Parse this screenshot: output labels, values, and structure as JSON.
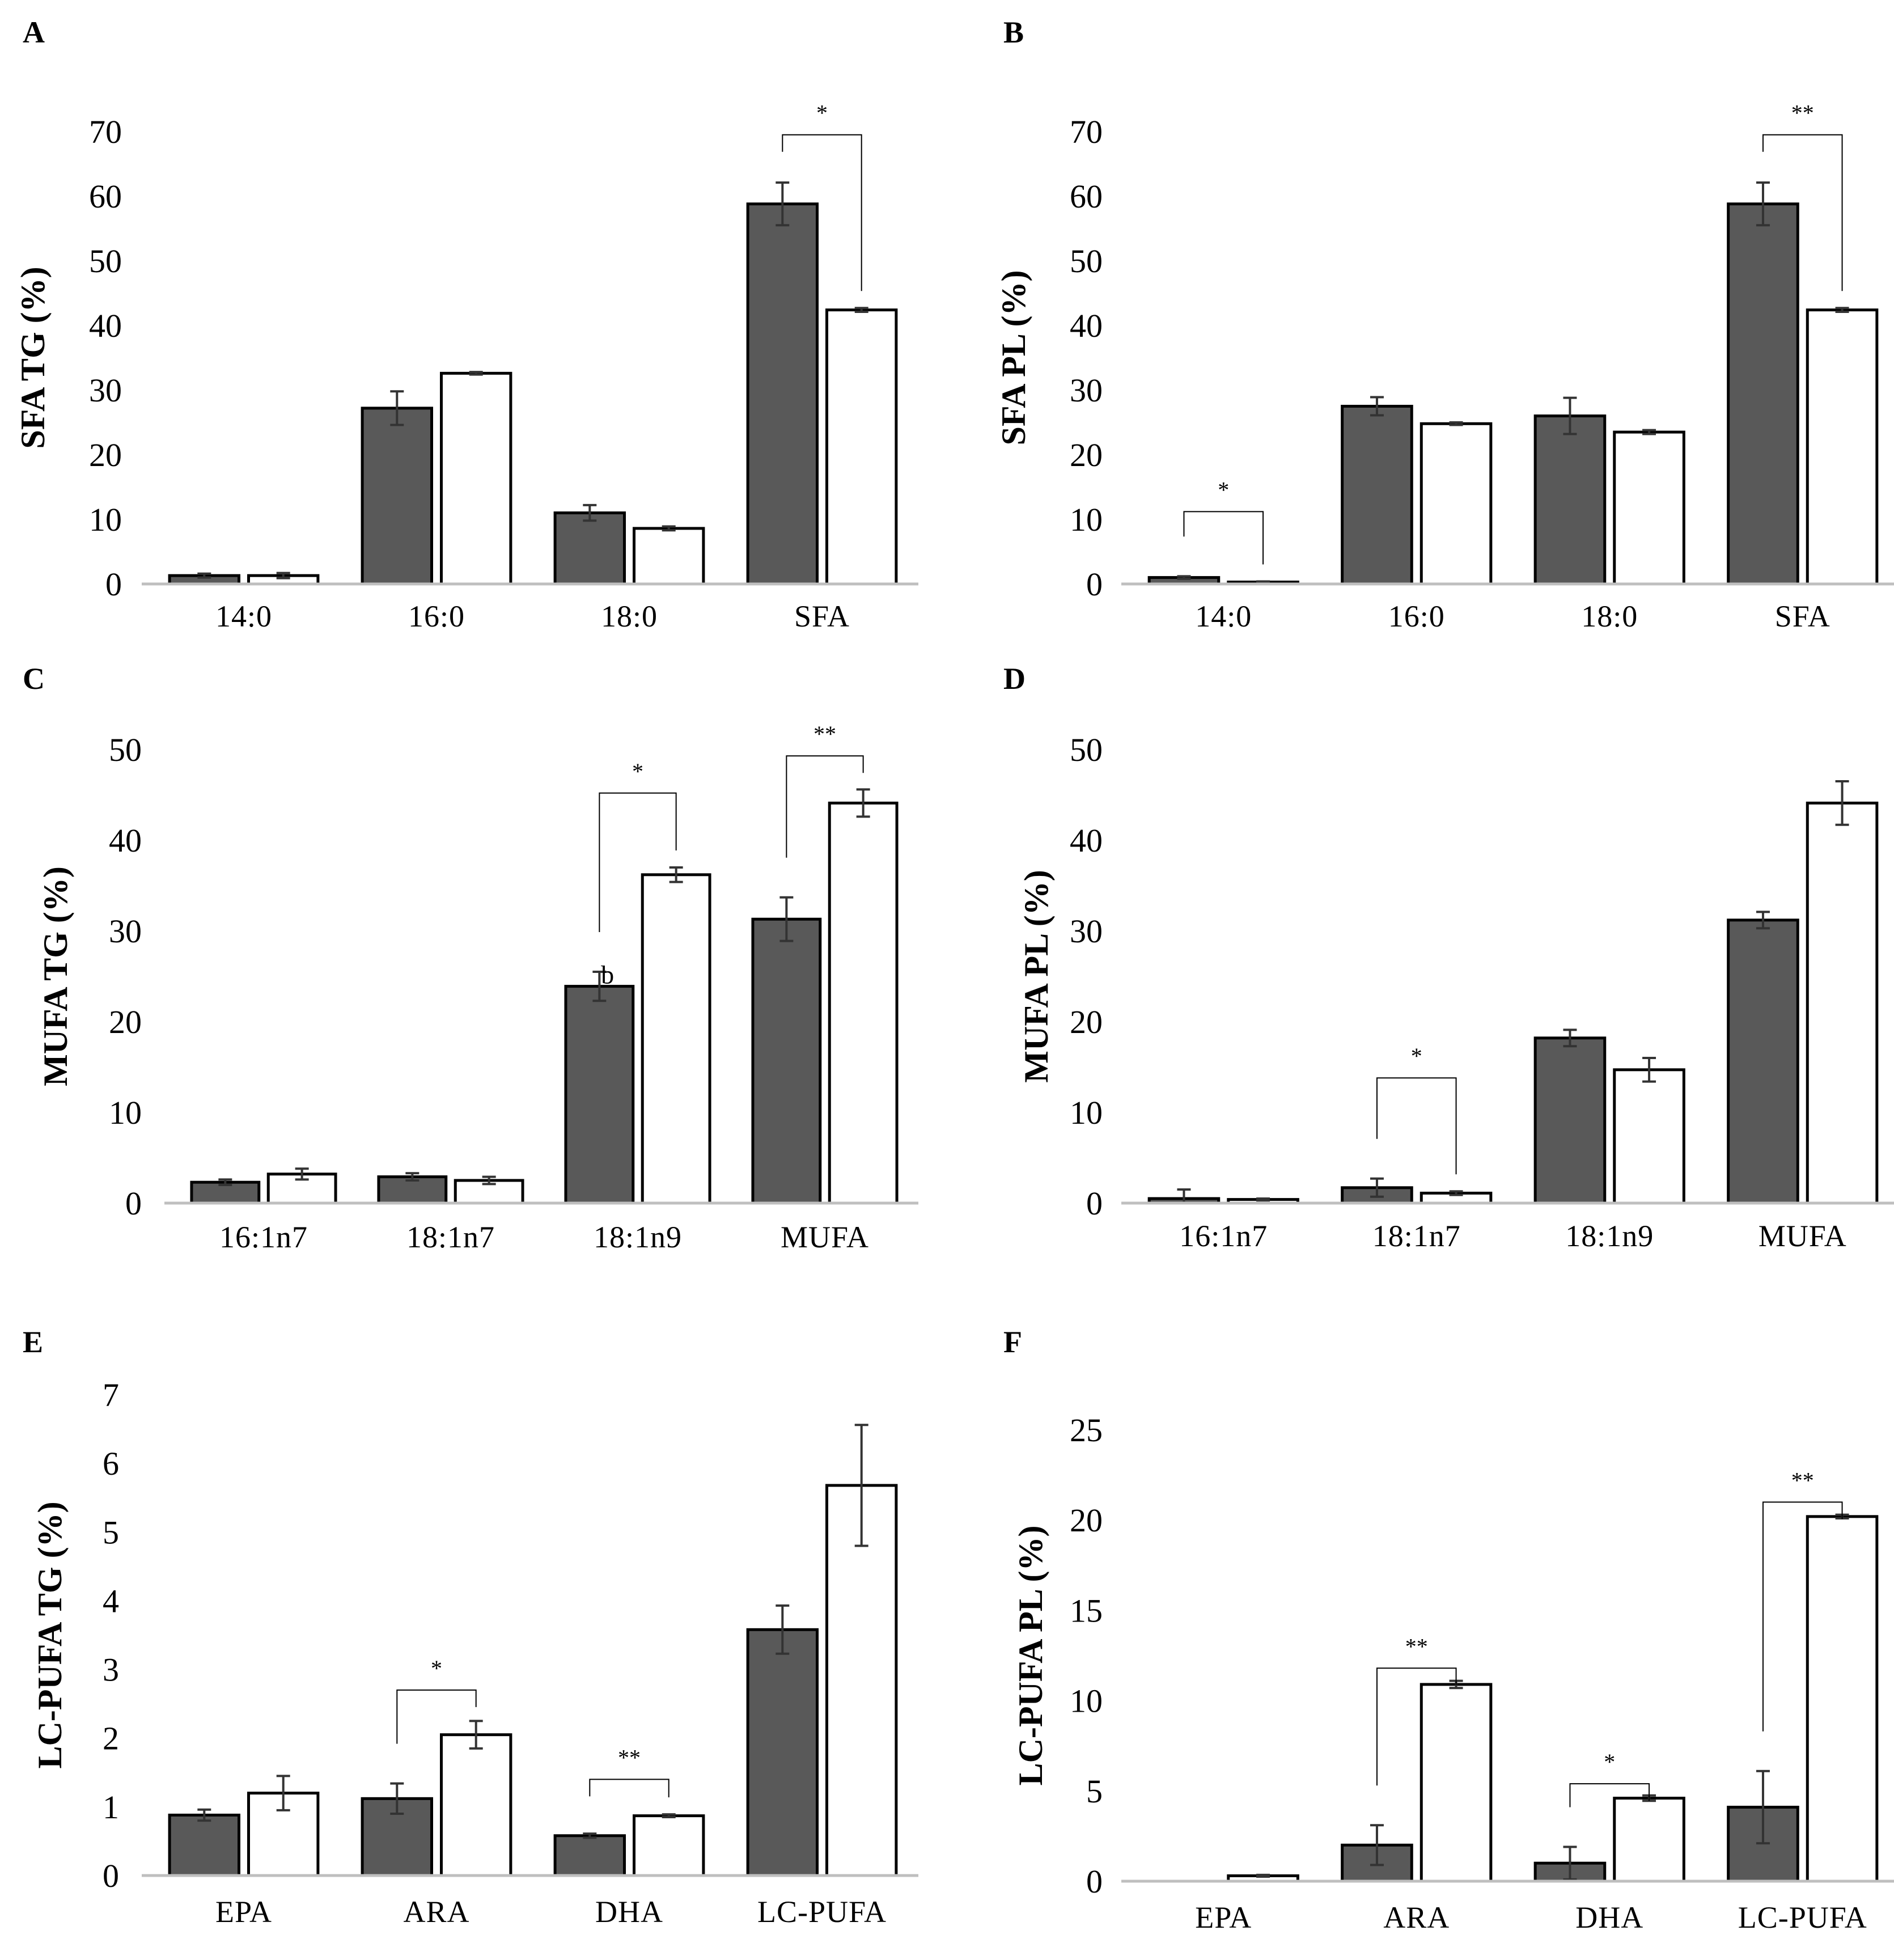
{
  "colors": {
    "control": "#595959",
    "treatment": "#ffffff",
    "outline": "#000000",
    "axis": "#bfbfbf",
    "error": "#333333"
  },
  "chart_data": [
    {
      "panel": "A",
      "type": "bar",
      "ylabel": "SFA TG (%)",
      "ylim": [
        0,
        70
      ],
      "yticks": [
        0,
        10,
        20,
        30,
        40,
        50,
        60,
        70
      ],
      "categories": [
        "14:0",
        "16:0",
        "18:0",
        "SFA"
      ],
      "series": [
        {
          "name": "dark",
          "values": [
            1.3,
            27.2,
            11.0,
            58.8
          ],
          "errors": [
            0.3,
            2.6,
            1.2,
            3.3
          ]
        },
        {
          "name": "white",
          "values": [
            1.3,
            32.6,
            8.6,
            42.4
          ],
          "errors": [
            0.4,
            0.2,
            0.3,
            0.3
          ]
        }
      ],
      "brackets": [
        {
          "category": 3,
          "label": "*",
          "top": 69.5
        }
      ],
      "annotations": []
    },
    {
      "panel": "B",
      "type": "bar",
      "ylabel": "SFA PL (%)",
      "ylim": [
        0,
        70
      ],
      "yticks": [
        0,
        10,
        20,
        30,
        40,
        50,
        60,
        70
      ],
      "categories": [
        "14:0",
        "16:0",
        "18:0",
        "SFA"
      ],
      "series": [
        {
          "name": "dark",
          "values": [
            1.0,
            27.5,
            26.0,
            58.8
          ],
          "errors": [
            0.2,
            1.4,
            2.8,
            3.3
          ]
        },
        {
          "name": "white",
          "values": [
            0.3,
            24.8,
            23.5,
            42.4
          ],
          "errors": [
            0.1,
            0.2,
            0.3,
            0.3
          ]
        }
      ],
      "brackets": [
        {
          "category": 0,
          "label": "*",
          "top": 11.2
        },
        {
          "category": 3,
          "label": "**",
          "top": 69.5
        }
      ],
      "annotations": []
    },
    {
      "panel": "C",
      "type": "bar",
      "ylabel": "MUFA TG (%)",
      "ylim": [
        0,
        50
      ],
      "yticks": [
        0,
        10,
        20,
        30,
        40,
        50
      ],
      "categories": [
        "16:1n7",
        "18:1n7",
        "18:1n9",
        "MUFA"
      ],
      "series": [
        {
          "name": "dark",
          "values": [
            2.3,
            2.9,
            23.9,
            31.3
          ],
          "errors": [
            0.3,
            0.4,
            1.6,
            2.4
          ]
        },
        {
          "name": "white",
          "values": [
            3.2,
            2.5,
            36.2,
            44.1
          ],
          "errors": [
            0.6,
            0.4,
            0.8,
            1.5
          ]
        }
      ],
      "brackets": [
        {
          "category": 2,
          "label": "*",
          "top": 45.2
        },
        {
          "category": 3,
          "label": "**",
          "top": 49.3
        }
      ],
      "annotations": [
        {
          "category": 2,
          "series": 0,
          "text": "b"
        }
      ]
    },
    {
      "panel": "D",
      "type": "bar",
      "ylabel": "MUFA PL (%)",
      "ylim": [
        0,
        50
      ],
      "yticks": [
        0,
        10,
        20,
        30,
        40,
        50
      ],
      "categories": [
        "16:1n7",
        "18:1n7",
        "18:1n9",
        "MUFA"
      ],
      "series": [
        {
          "name": "dark",
          "values": [
            0.5,
            1.7,
            18.2,
            31.2
          ],
          "errors": [
            1.0,
            1.0,
            0.9,
            0.9
          ]
        },
        {
          "name": "white",
          "values": [
            0.4,
            1.1,
            14.7,
            44.1
          ],
          "errors": [
            0.1,
            0.2,
            1.3,
            2.4
          ]
        }
      ],
      "brackets": [
        {
          "category": 1,
          "label": "*",
          "top": 13.8
        }
      ],
      "annotations": []
    },
    {
      "panel": "E",
      "type": "bar",
      "ylabel": "LC-PUFA TG (%)",
      "ylim": [
        0,
        7
      ],
      "yticks": [
        0,
        1,
        2,
        3,
        4,
        5,
        6,
        7
      ],
      "categories": [
        "EPA",
        "ARA",
        "DHA",
        "LC-PUFA"
      ],
      "series": [
        {
          "name": "dark",
          "values": [
            0.88,
            1.12,
            0.58,
            3.58
          ],
          "errors": [
            0.08,
            0.22,
            0.03,
            0.35
          ]
        },
        {
          "name": "white",
          "values": [
            1.2,
            2.05,
            0.87,
            5.68
          ],
          "errors": [
            0.25,
            0.2,
            0.02,
            0.88
          ]
        }
      ],
      "brackets": [
        {
          "category": 1,
          "label": "*",
          "top": 2.7
        },
        {
          "category": 2,
          "label": "**",
          "top": 1.4
        }
      ],
      "annotations": []
    },
    {
      "panel": "F",
      "type": "bar",
      "ylabel": "LC-PUFA PL (%)",
      "ylim": [
        0,
        25
      ],
      "yticks": [
        0,
        5,
        10,
        15,
        20,
        25
      ],
      "categories": [
        "EPA",
        "ARA",
        "DHA",
        "LC-PUFA"
      ],
      "series": [
        {
          "name": "dark",
          "values": [
            0.0,
            2.0,
            1.0,
            4.1
          ],
          "errors": [
            0.0,
            1.1,
            0.9,
            2.0
          ]
        },
        {
          "name": "white",
          "values": [
            0.3,
            10.9,
            4.6,
            20.2
          ],
          "errors": [
            0.05,
            0.2,
            0.15,
            0.1
          ]
        }
      ],
      "brackets": [
        {
          "category": 1,
          "label": "**",
          "top": 11.8
        },
        {
          "category": 2,
          "label": "*",
          "top": 5.4
        },
        {
          "category": 3,
          "label": "**",
          "top": 21.0
        }
      ],
      "annotations": []
    }
  ]
}
